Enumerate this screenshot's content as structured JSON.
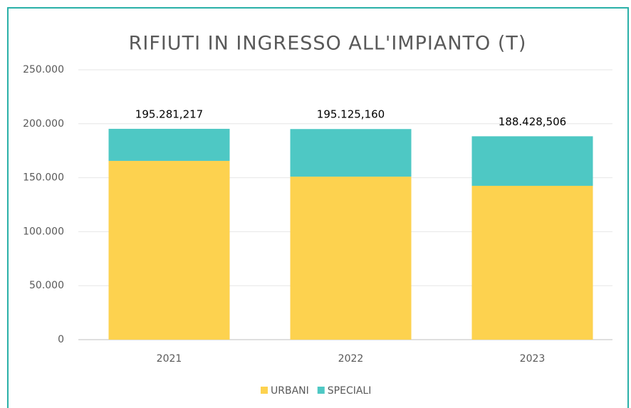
{
  "chart_data": {
    "type": "stacked_bar",
    "title": "RIFIUTI IN INGRESSO ALL'IMPIANTO (T)",
    "categories": [
      "2021",
      "2022",
      "2023"
    ],
    "series": [
      {
        "name": "URBANI",
        "color": "#fdd24f",
        "values": [
          165600,
          151000,
          142500
        ]
      },
      {
        "name": "SPECIALI",
        "color": "#4ec8c4",
        "values": [
          29700,
          44100,
          45900
        ]
      }
    ],
    "totals": [
      195281.217,
      195125.16,
      188428.506
    ],
    "total_labels": [
      "195.281,217",
      "195.125,160",
      "188.428,506"
    ],
    "ylim": [
      0,
      250000
    ],
    "yticks": [
      0,
      {
        "value": 50000,
        "label": "50.000"
      },
      {
        "value": 100000,
        "label": "100.000"
      },
      {
        "value": 150000,
        "label": "150.000"
      },
      {
        "value": 200000,
        "label": "200.000"
      },
      {
        "value": 250000,
        "label": "250.000"
      }
    ],
    "grid": true,
    "legend": "bottom"
  }
}
